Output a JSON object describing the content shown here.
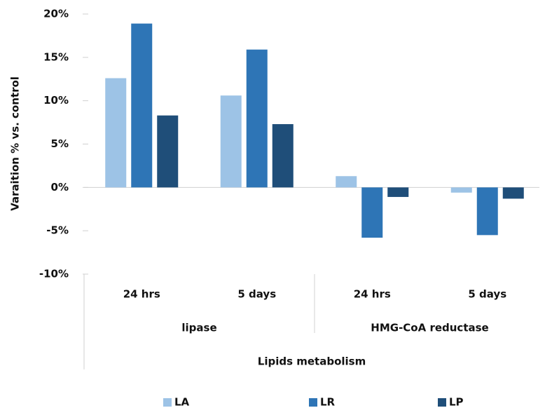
{
  "chart_data": {
    "type": "bar",
    "y_label": "Varaition % vs. control",
    "categories": [
      "24 hrs",
      "5 days",
      "24 hrs",
      "5 days"
    ],
    "groups": [
      "lipase",
      "HMG-CoA reductase"
    ],
    "supergroup": "Lipids metabolism",
    "series": [
      {
        "name": "LA",
        "color": "#9dc3e6",
        "values": [
          12.6,
          10.6,
          1.3,
          -0.6
        ]
      },
      {
        "name": "LR",
        "color": "#2e75b6",
        "values": [
          18.9,
          15.9,
          -5.8,
          -5.5
        ]
      },
      {
        "name": "LP",
        "color": "#1f4e79",
        "values": [
          8.3,
          7.3,
          -1.1,
          -1.3
        ]
      }
    ],
    "ylim": [
      -10,
      20
    ],
    "yticks": [
      {
        "value": -10,
        "label": "-10%"
      },
      {
        "value": -5,
        "label": "-5%"
      },
      {
        "value": 0,
        "label": "0%"
      },
      {
        "value": 5,
        "label": "5%"
      },
      {
        "value": 10,
        "label": "10%"
      },
      {
        "value": 15,
        "label": "15%"
      },
      {
        "value": 20,
        "label": "20%"
      }
    ],
    "grid": false,
    "legend": "bottom"
  }
}
